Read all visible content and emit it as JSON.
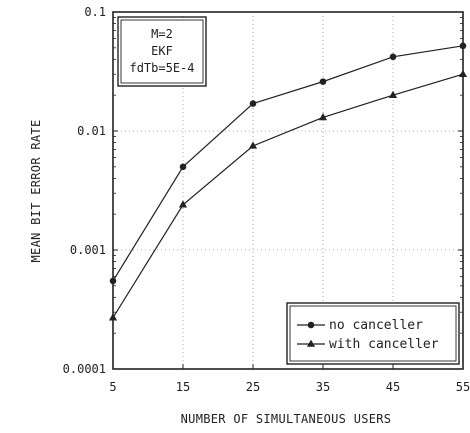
{
  "chart_data": {
    "type": "line",
    "xlabel": "NUMBER OF SIMULTANEOUS USERS",
    "ylabel": "MEAN BIT ERROR RATE",
    "x": [
      5,
      15,
      25,
      35,
      45,
      55
    ],
    "xlim": [
      5,
      55
    ],
    "ylim": [
      0.0001,
      0.1
    ],
    "yscale": "log",
    "x_tick_labels": [
      "5",
      "15",
      "25",
      "35",
      "45",
      "55"
    ],
    "y_ticks": [
      0.0001,
      0.001,
      0.01,
      0.1
    ],
    "y_tick_labels": [
      "0.0001",
      "0.001",
      "0.01",
      "0.1"
    ],
    "grid": "dotted",
    "legend_placement": "bottom-right",
    "annotation_lines": [
      "M=2",
      "EKF",
      "fdTb=5E-4"
    ],
    "series": [
      {
        "name": "no canceller",
        "marker": "circle",
        "values": [
          0.00055,
          0.005,
          0.017,
          0.026,
          0.042,
          0.052
        ]
      },
      {
        "name": "with canceller",
        "marker": "triangle",
        "values": [
          0.00027,
          0.0024,
          0.0075,
          0.013,
          0.02,
          0.03
        ]
      }
    ]
  }
}
